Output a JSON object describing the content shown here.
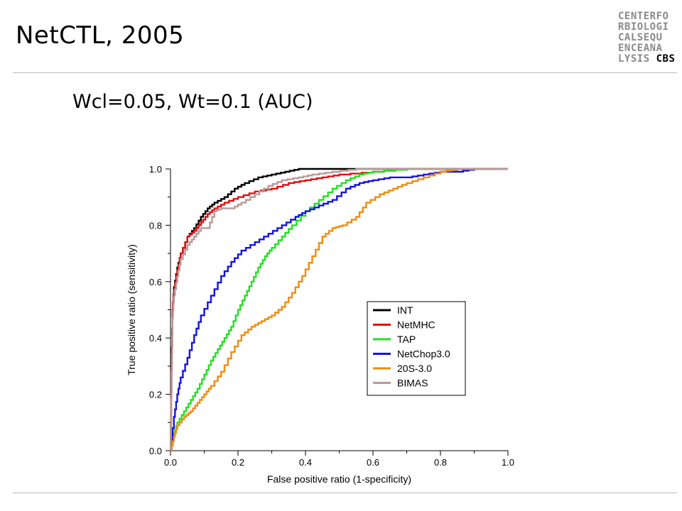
{
  "slide": {
    "title": "NetCTL, 2005",
    "subtitle": "Wcl=0.05, Wt=0.1 (AUC)"
  },
  "logo": {
    "lines": [
      "CENTERFO",
      "RBIOLOGI",
      "CALSEQU",
      "ENCEANA",
      "LYSIS"
    ],
    "suffix": "CBS"
  },
  "chart_data": {
    "type": "line",
    "xlabel": "False positive ratio (1-specificity)",
    "ylabel": "True positive ratio (sensitivity)",
    "xlim": [
      0,
      1
    ],
    "ylim": [
      0,
      1
    ],
    "xticks": [
      "0.0",
      "0.2",
      "0.4",
      "0.6",
      "0.8",
      "1.0"
    ],
    "yticks": [
      "0.0",
      "0.2",
      "0.4",
      "0.6",
      "0.8",
      "1.0"
    ],
    "grid": false,
    "legend_position": "lower-right",
    "series": [
      {
        "name": "INT",
        "color": "#000000",
        "points": [
          [
            0,
            0
          ],
          [
            0.003,
            0.3
          ],
          [
            0.006,
            0.5
          ],
          [
            0.01,
            0.58
          ],
          [
            0.02,
            0.65
          ],
          [
            0.03,
            0.7
          ],
          [
            0.05,
            0.76
          ],
          [
            0.07,
            0.79
          ],
          [
            0.09,
            0.83
          ],
          [
            0.11,
            0.86
          ],
          [
            0.13,
            0.88
          ],
          [
            0.16,
            0.9
          ],
          [
            0.19,
            0.93
          ],
          [
            0.22,
            0.95
          ],
          [
            0.26,
            0.97
          ],
          [
            0.3,
            0.98
          ],
          [
            0.34,
            0.99
          ],
          [
            0.38,
            1.0
          ],
          [
            0.5,
            1.0
          ],
          [
            1,
            1.0
          ]
        ]
      },
      {
        "name": "NetMHC",
        "color": "#e01010",
        "points": [
          [
            0,
            0
          ],
          [
            0.003,
            0.3
          ],
          [
            0.006,
            0.5
          ],
          [
            0.01,
            0.57
          ],
          [
            0.02,
            0.64
          ],
          [
            0.03,
            0.7
          ],
          [
            0.05,
            0.76
          ],
          [
            0.07,
            0.78
          ],
          [
            0.09,
            0.81
          ],
          [
            0.11,
            0.84
          ],
          [
            0.13,
            0.86
          ],
          [
            0.16,
            0.88
          ],
          [
            0.2,
            0.9
          ],
          [
            0.25,
            0.92
          ],
          [
            0.3,
            0.93
          ],
          [
            0.35,
            0.95
          ],
          [
            0.4,
            0.96
          ],
          [
            0.45,
            0.97
          ],
          [
            0.5,
            0.98
          ],
          [
            0.6,
            0.99
          ],
          [
            0.7,
            1.0
          ],
          [
            1,
            1.0
          ]
        ]
      },
      {
        "name": "TAP",
        "color": "#22e022",
        "points": [
          [
            0,
            0
          ],
          [
            0.01,
            0.06
          ],
          [
            0.02,
            0.1
          ],
          [
            0.04,
            0.14
          ],
          [
            0.06,
            0.18
          ],
          [
            0.08,
            0.22
          ],
          [
            0.1,
            0.27
          ],
          [
            0.12,
            0.32
          ],
          [
            0.14,
            0.36
          ],
          [
            0.16,
            0.4
          ],
          [
            0.18,
            0.44
          ],
          [
            0.2,
            0.5
          ],
          [
            0.22,
            0.55
          ],
          [
            0.24,
            0.6
          ],
          [
            0.26,
            0.65
          ],
          [
            0.28,
            0.69
          ],
          [
            0.3,
            0.72
          ],
          [
            0.33,
            0.76
          ],
          [
            0.36,
            0.8
          ],
          [
            0.4,
            0.85
          ],
          [
            0.44,
            0.89
          ],
          [
            0.48,
            0.93
          ],
          [
            0.52,
            0.96
          ],
          [
            0.56,
            0.98
          ],
          [
            0.6,
            0.99
          ],
          [
            0.7,
            1.0
          ],
          [
            0.85,
            1.0
          ],
          [
            0.95,
            1.0
          ],
          [
            1,
            1.0
          ]
        ]
      },
      {
        "name": "NetChop3.0",
        "color": "#1414e0",
        "points": [
          [
            0,
            0
          ],
          [
            0.01,
            0.12
          ],
          [
            0.02,
            0.2
          ],
          [
            0.03,
            0.26
          ],
          [
            0.05,
            0.33
          ],
          [
            0.07,
            0.41
          ],
          [
            0.09,
            0.48
          ],
          [
            0.12,
            0.55
          ],
          [
            0.15,
            0.62
          ],
          [
            0.18,
            0.67
          ],
          [
            0.21,
            0.71
          ],
          [
            0.25,
            0.74
          ],
          [
            0.29,
            0.77
          ],
          [
            0.33,
            0.8
          ],
          [
            0.37,
            0.83
          ],
          [
            0.4,
            0.85
          ],
          [
            0.44,
            0.87
          ],
          [
            0.48,
            0.89
          ],
          [
            0.52,
            0.93
          ],
          [
            0.56,
            0.95
          ],
          [
            0.6,
            0.96
          ],
          [
            0.65,
            0.97
          ],
          [
            0.7,
            0.97
          ],
          [
            0.75,
            0.98
          ],
          [
            0.8,
            0.99
          ],
          [
            0.85,
            0.99
          ],
          [
            0.9,
            1.0
          ],
          [
            1,
            1.0
          ]
        ]
      },
      {
        "name": "20S-3.0",
        "color": "#f08c10",
        "points": [
          [
            0,
            0
          ],
          [
            0.01,
            0.05
          ],
          [
            0.02,
            0.09
          ],
          [
            0.04,
            0.12
          ],
          [
            0.06,
            0.14
          ],
          [
            0.08,
            0.17
          ],
          [
            0.1,
            0.2
          ],
          [
            0.12,
            0.23
          ],
          [
            0.15,
            0.28
          ],
          [
            0.18,
            0.35
          ],
          [
            0.21,
            0.41
          ],
          [
            0.24,
            0.44
          ],
          [
            0.27,
            0.46
          ],
          [
            0.3,
            0.48
          ],
          [
            0.33,
            0.51
          ],
          [
            0.36,
            0.56
          ],
          [
            0.39,
            0.62
          ],
          [
            0.42,
            0.69
          ],
          [
            0.45,
            0.76
          ],
          [
            0.48,
            0.79
          ],
          [
            0.51,
            0.8
          ],
          [
            0.55,
            0.83
          ],
          [
            0.58,
            0.88
          ],
          [
            0.62,
            0.91
          ],
          [
            0.66,
            0.93
          ],
          [
            0.7,
            0.95
          ],
          [
            0.75,
            0.97
          ],
          [
            0.8,
            0.99
          ],
          [
            0.85,
            1.0
          ],
          [
            1,
            1.0
          ]
        ]
      },
      {
        "name": "BIMAS",
        "color": "#b89a9a",
        "points": [
          [
            0,
            0
          ],
          [
            0.003,
            0.28
          ],
          [
            0.006,
            0.47
          ],
          [
            0.01,
            0.55
          ],
          [
            0.02,
            0.62
          ],
          [
            0.03,
            0.68
          ],
          [
            0.05,
            0.73
          ],
          [
            0.07,
            0.76
          ],
          [
            0.09,
            0.79
          ],
          [
            0.11,
            0.79
          ],
          [
            0.13,
            0.85
          ],
          [
            0.15,
            0.86
          ],
          [
            0.18,
            0.86
          ],
          [
            0.21,
            0.88
          ],
          [
            0.25,
            0.91
          ],
          [
            0.29,
            0.94
          ],
          [
            0.33,
            0.96
          ],
          [
            0.38,
            0.97
          ],
          [
            0.42,
            0.98
          ],
          [
            0.48,
            0.99
          ],
          [
            0.55,
            1.0
          ],
          [
            1,
            1.0
          ]
        ]
      }
    ]
  }
}
